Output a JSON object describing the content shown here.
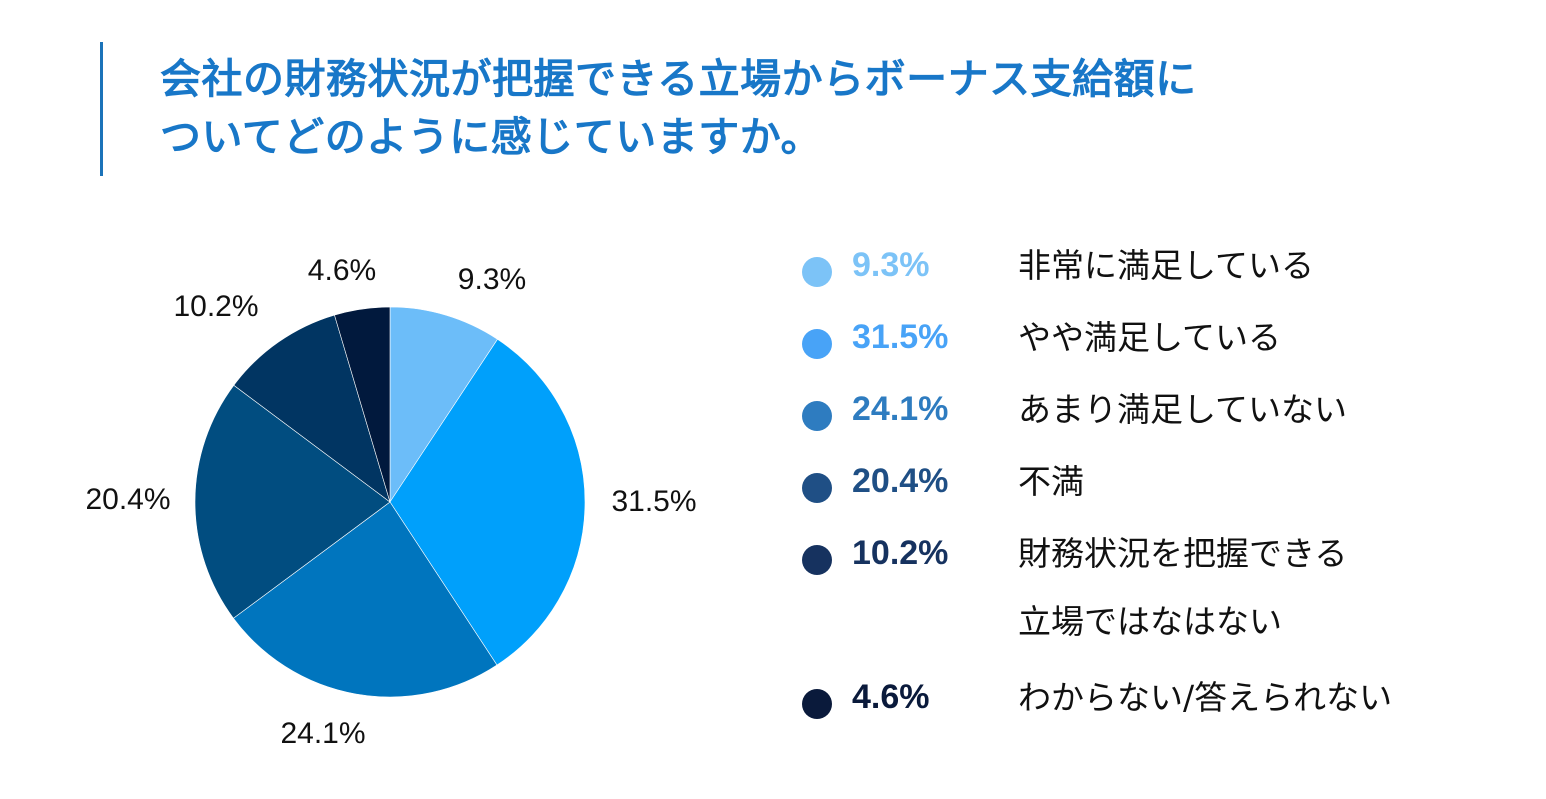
{
  "title": {
    "line1": "会社の財務状況が把握できる立場からボーナス支給額に",
    "line2": "ついてどのように感じていますか。"
  },
  "chart_data": {
    "type": "pie",
    "categories": [
      "非常に満足している",
      "やや満足している",
      "あまり満足していない",
      "不満",
      "財務状況を把握できる\n立場ではなはない",
      "わからない/答えられない"
    ],
    "values": [
      9.3,
      31.5,
      24.1,
      20.4,
      10.2,
      4.6
    ],
    "value_labels": [
      "9.3%",
      "31.5%",
      "24.1%",
      "20.4%",
      "10.2%",
      "4.6%"
    ],
    "colors": [
      "#6cbdf9",
      "#00a0fb",
      "#0075be",
      "#014d80",
      "#013562",
      "#01193d"
    ],
    "legend_dot_colors": [
      "#7cc3f7",
      "#48a3f7",
      "#2e7cc0",
      "#1f4f85",
      "#16325f",
      "#0a1a3b"
    ],
    "legend_text_colors": [
      "#7cc3f7",
      "#48a3f7",
      "#2e7cc0",
      "#1f4f85",
      "#16325f",
      "#0a1a3b"
    ],
    "start_angle_deg": 0,
    "direction": "clockwise",
    "legend_position": "right"
  }
}
